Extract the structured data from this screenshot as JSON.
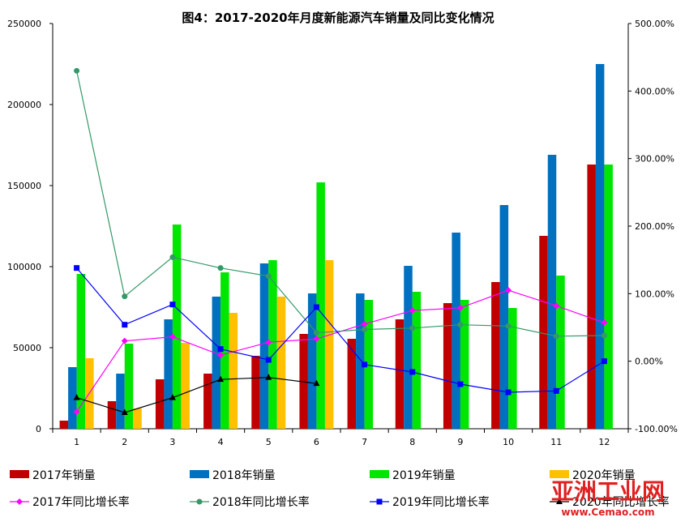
{
  "chart_data": {
    "type": "bar",
    "title": "图4：2017-2020年月度新能源汽车销量及同比变化情况",
    "categories": [
      "1",
      "2",
      "3",
      "4",
      "5",
      "6",
      "7",
      "8",
      "9",
      "10",
      "11",
      "12"
    ],
    "y_left": {
      "min": 0,
      "max": 250000,
      "ticks": [
        "0",
        "50000",
        "100000",
        "150000",
        "200000",
        "250000"
      ]
    },
    "y_right": {
      "min": -100,
      "max": 500,
      "ticks": [
        "-100.00%",
        "0.00%",
        "100.00%",
        "200.00%",
        "300.00%",
        "400.00%",
        "500.00%"
      ]
    },
    "grid": false,
    "legend_position": "bottom",
    "bar_series": [
      {
        "name": "2017年销量",
        "color": "#c00000",
        "values": [
          5000,
          17000,
          30500,
          34000,
          45000,
          58500,
          55500,
          67500,
          77500,
          90500,
          119000,
          163000
        ]
      },
      {
        "name": "2018年销量",
        "color": "#0070c0",
        "values": [
          38000,
          34000,
          67500,
          81500,
          102000,
          83500,
          83500,
          100500,
          121000,
          138000,
          169000,
          225000
        ]
      },
      {
        "name": "2019年销量",
        "color": "#00e600",
        "values": [
          95500,
          52500,
          126000,
          96500,
          104000,
          152000,
          79500,
          84500,
          79500,
          74500,
          94500,
          163000
        ]
      },
      {
        "name": "2020年销量",
        "color": "#ffc000",
        "values": [
          43500,
          12500,
          53000,
          71500,
          81500,
          104000,
          null,
          null,
          null,
          null,
          null,
          null
        ]
      }
    ],
    "line_series": [
      {
        "name": "2017年同比增长率",
        "color": "#ff00ff",
        "marker": "diamond",
        "values": [
          -75,
          30,
          36,
          9,
          28,
          33,
          55,
          75,
          79,
          105,
          82,
          57
        ]
      },
      {
        "name": "2018年同比增长率",
        "color": "#339966",
        "marker": "circle",
        "values": [
          430,
          96,
          154,
          138,
          126,
          42,
          47,
          49,
          54,
          52,
          37,
          38
        ]
      },
      {
        "name": "2019年同比增长率",
        "color": "#0000ff",
        "marker": "square",
        "values": [
          138,
          54,
          84,
          18,
          2,
          80,
          -5,
          -16,
          -34,
          -46,
          -44,
          0
        ]
      },
      {
        "name": "2020年同比增长率",
        "color": "#000000",
        "marker": "triangle",
        "values": [
          -54,
          -76,
          -54,
          -27,
          -24,
          -33,
          null,
          null,
          null,
          null,
          null,
          null
        ]
      }
    ]
  },
  "watermark": {
    "main": "亚洲工业网",
    "sub": "www.Cemao.com",
    "color": "#e02020"
  }
}
